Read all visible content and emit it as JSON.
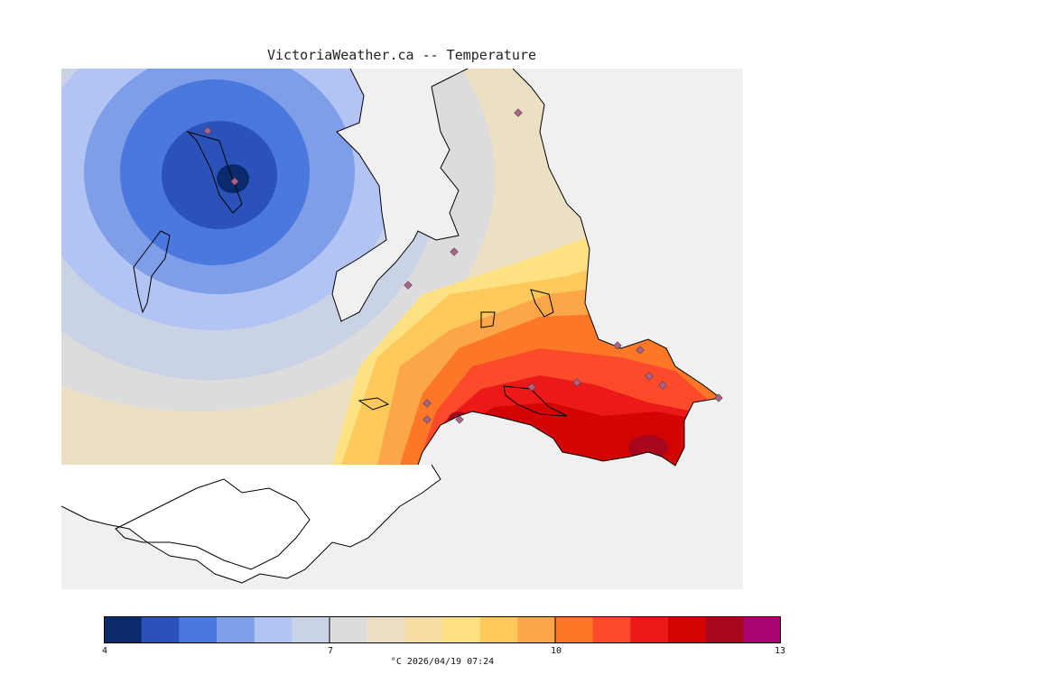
{
  "title": "VictoriaWeather.ca -- Temperature",
  "colorbar": {
    "min": 4,
    "max": 13,
    "tick_labels": [
      "4",
      "7",
      "10",
      "13"
    ],
    "colors": [
      "#0b2a6e",
      "#2a52b8",
      "#4a78dc",
      "#7e9ee8",
      "#b2c4f3",
      "#cad2e6",
      "#dcdcdc",
      "#ebe0c4",
      "#f4dca2",
      "#fde182",
      "#fdc95a",
      "#fca64a",
      "#fc7827",
      "#fc4a2a",
      "#ec1919",
      "#d30404",
      "#a8061c",
      "#a80474"
    ]
  },
  "footer": "°C  2026/04/19 07:24",
  "colors": {
    "water": "#f0f0f0",
    "land_outside": "#ffffff",
    "coastline": "#000000",
    "station_marker": "#b0608a"
  }
}
